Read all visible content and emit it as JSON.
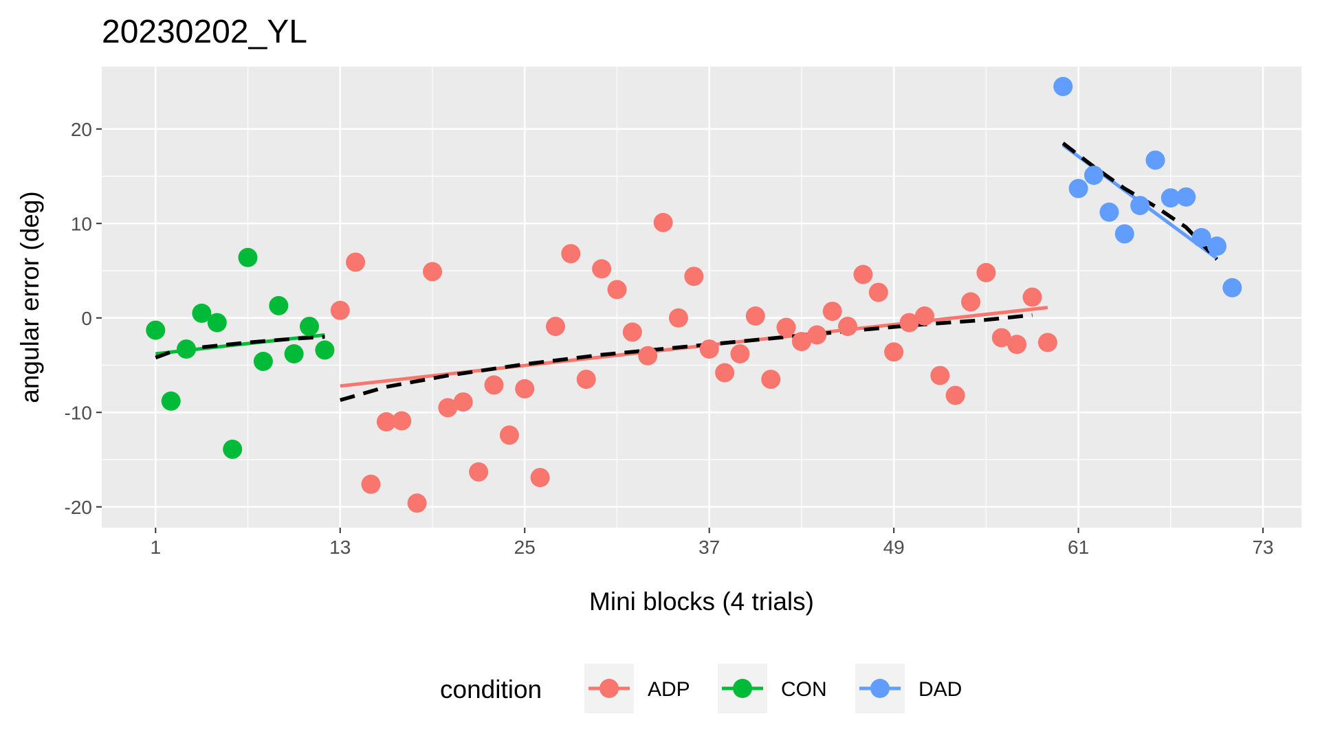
{
  "chart_data": {
    "type": "scatter",
    "title": "20230202_YL",
    "xlabel": "Mini blocks (4 trials)",
    "ylabel": "angular error (deg)",
    "xlim": [
      -2.5,
      75.5
    ],
    "ylim": [
      -22.2,
      26.6
    ],
    "x_ticks": [
      1,
      13,
      25,
      37,
      49,
      61,
      73
    ],
    "x_tick_labels": [
      "1",
      "13",
      "25",
      "37",
      "49",
      "61",
      "73"
    ],
    "y_ticks": [
      -20,
      -10,
      0,
      10,
      20
    ],
    "y_tick_labels": [
      "-20",
      "-10",
      "0",
      "10",
      "20"
    ],
    "grid": true,
    "panel_background": "#ebebeb",
    "legend": {
      "title": "condition",
      "position": "bottom",
      "entries": [
        "ADP",
        "CON",
        "DAD"
      ]
    },
    "series": [
      {
        "name": "CON",
        "color": "#00ba38",
        "points": [
          [
            1,
            -1.3
          ],
          [
            2,
            -8.8
          ],
          [
            3,
            -3.3
          ],
          [
            4,
            0.5
          ],
          [
            5,
            -0.5
          ],
          [
            6,
            -13.9
          ],
          [
            7,
            6.4
          ],
          [
            8,
            -4.6
          ],
          [
            9,
            1.3
          ],
          [
            10,
            -3.8
          ],
          [
            11,
            -0.9
          ],
          [
            12,
            -3.4
          ]
        ],
        "fit": [
          [
            1,
            -3.8
          ],
          [
            12,
            -1.8
          ]
        ],
        "smooth": [
          [
            1,
            -4.2
          ],
          [
            2,
            -3.6
          ],
          [
            4,
            -3.1
          ],
          [
            7,
            -2.6
          ],
          [
            10,
            -2.2
          ],
          [
            12,
            -2.0
          ]
        ]
      },
      {
        "name": "ADP",
        "color": "#f8766d",
        "points": [
          [
            13,
            0.8
          ],
          [
            14,
            5.9
          ],
          [
            15,
            -17.6
          ],
          [
            16,
            -11.0
          ],
          [
            17,
            -10.9
          ],
          [
            18,
            -19.6
          ],
          [
            19,
            4.9
          ],
          [
            20,
            -9.5
          ],
          [
            21,
            -8.9
          ],
          [
            22,
            -16.3
          ],
          [
            23,
            -7.1
          ],
          [
            24,
            -12.4
          ],
          [
            25,
            -7.5
          ],
          [
            26,
            -16.9
          ],
          [
            27,
            -0.9
          ],
          [
            28,
            6.8
          ],
          [
            29,
            -6.5
          ],
          [
            30,
            5.2
          ],
          [
            31,
            3.0
          ],
          [
            32,
            -1.5
          ],
          [
            33,
            -4.0
          ],
          [
            34,
            10.1
          ],
          [
            35,
            0.0
          ],
          [
            36,
            4.4
          ],
          [
            37,
            -3.3
          ],
          [
            38,
            -5.8
          ],
          [
            39,
            -3.8
          ],
          [
            40,
            0.2
          ],
          [
            41,
            -6.5
          ],
          [
            42,
            -1.0
          ],
          [
            43,
            -2.5
          ],
          [
            44,
            -1.8
          ],
          [
            45,
            0.7
          ],
          [
            46,
            -0.9
          ],
          [
            47,
            4.6
          ],
          [
            48,
            2.7
          ],
          [
            49,
            -3.6
          ],
          [
            50,
            -0.5
          ],
          [
            51,
            0.2
          ],
          [
            52,
            -6.1
          ],
          [
            53,
            -8.2
          ],
          [
            54,
            1.7
          ],
          [
            55,
            4.8
          ],
          [
            56,
            -2.1
          ],
          [
            57,
            -2.8
          ],
          [
            58,
            2.2
          ],
          [
            59,
            -2.6
          ]
        ],
        "fit": [
          [
            13,
            -7.2
          ],
          [
            59,
            1.1
          ]
        ],
        "smooth": [
          [
            13,
            -8.7
          ],
          [
            16,
            -7.3
          ],
          [
            20,
            -6.1
          ],
          [
            25,
            -4.9
          ],
          [
            30,
            -3.9
          ],
          [
            37,
            -2.8
          ],
          [
            44,
            -1.7
          ],
          [
            50,
            -0.8
          ],
          [
            55,
            -0.2
          ],
          [
            58,
            0.3
          ]
        ]
      },
      {
        "name": "DAD",
        "color": "#619cff",
        "points": [
          [
            60,
            24.5
          ],
          [
            61,
            13.7
          ],
          [
            62,
            15.1
          ],
          [
            63,
            11.2
          ],
          [
            64,
            8.9
          ],
          [
            65,
            11.9
          ],
          [
            66,
            16.7
          ],
          [
            67,
            12.7
          ],
          [
            68,
            12.8
          ],
          [
            69,
            8.5
          ],
          [
            70,
            7.6
          ],
          [
            71,
            3.2
          ]
        ],
        "fit": [
          [
            60,
            18.3
          ],
          [
            70,
            6.3
          ]
        ],
        "smooth": [
          [
            60,
            18.5
          ],
          [
            62,
            16.0
          ],
          [
            64,
            13.7
          ],
          [
            66,
            11.8
          ],
          [
            68,
            9.6
          ],
          [
            70,
            6.2
          ]
        ]
      }
    ]
  }
}
